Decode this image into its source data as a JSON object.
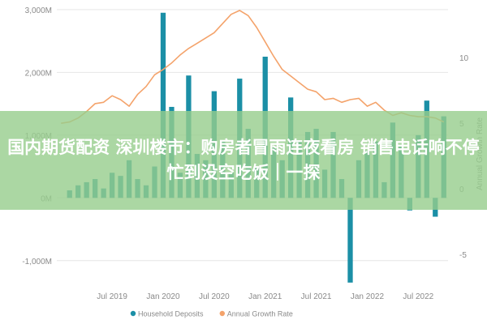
{
  "headline": "国内期货配资 深圳楼市：购房者冒雨连夜看房 销售电话响不停 忙到没空吃饭｜一探",
  "chart_data": {
    "type": "bar-line",
    "left_axis": {
      "ticks": [
        "3,000M",
        "2,000M",
        "1,000M",
        "0M",
        "-1,000M"
      ],
      "values": [
        3000,
        2000,
        1000,
        0,
        -1000
      ],
      "ylim": [
        -1300,
        3050
      ]
    },
    "right_axis": {
      "ticks": [
        "10",
        "5",
        "0",
        "-5"
      ],
      "values": [
        10,
        5,
        0,
        -5
      ],
      "ylim": [
        -6.9,
        13.9
      ],
      "label": "Annual Growth Rate"
    },
    "x_ticks": [
      "Jul 2019",
      "Jan 2020",
      "Jul 2020",
      "Jan 2021",
      "Jul 2021",
      "Jan 2022",
      "Jul 2022"
    ],
    "x_tick_months": [
      6,
      12,
      18,
      24,
      30,
      36,
      42
    ],
    "months_count": 46,
    "series": [
      {
        "name": "Household Deposits",
        "kind": "bar",
        "color": "#1b8fa6",
        "values": [
          0,
          120,
          200,
          250,
          300,
          150,
          400,
          350,
          600,
          300,
          200,
          500,
          2950,
          1450,
          400,
          1950,
          700,
          600,
          1700,
          900,
          400,
          1900,
          1100,
          500,
          2250,
          800,
          600,
          1600,
          900,
          1050,
          1100,
          450,
          1050,
          300,
          -1350,
          600,
          750,
          900,
          250,
          1200,
          850,
          -200,
          1000,
          1550,
          -300,
          1300
        ]
      },
      {
        "name": "Annual Growth Rate",
        "kind": "line",
        "color": "#f4a36b",
        "values": [
          5.0,
          5.1,
          5.4,
          5.9,
          6.5,
          6.6,
          7.1,
          6.8,
          6.3,
          7.2,
          7.8,
          8.7,
          9.1,
          9.6,
          10.2,
          10.7,
          11.1,
          11.5,
          11.9,
          12.6,
          13.3,
          13.6,
          13.2,
          12.3,
          11.2,
          10.1,
          9.1,
          8.6,
          8.1,
          7.6,
          7.4,
          6.8,
          6.9,
          6.6,
          6.8,
          6.9,
          6.3,
          6.6,
          6.0,
          5.6,
          5.8,
          5.6,
          5.5,
          5.5,
          5.4,
          5.1
        ]
      }
    ],
    "legend": [
      "Household Deposits",
      "Annual Growth Rate"
    ],
    "legend_position": "bottom"
  }
}
